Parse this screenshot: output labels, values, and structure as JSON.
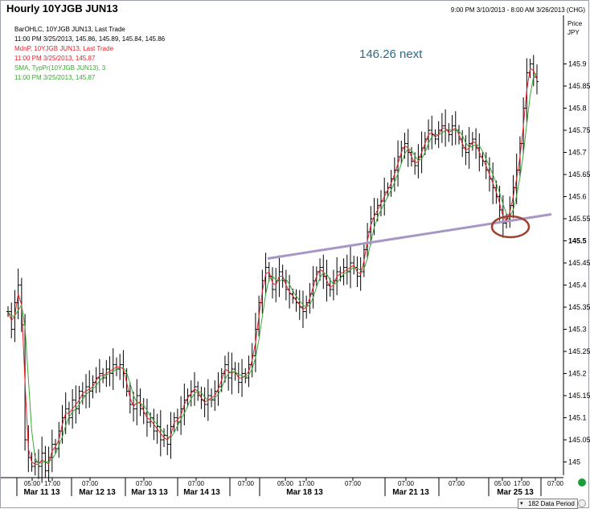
{
  "header": {
    "title": "Hourly 10YJGB JUN13",
    "date_range": "9:00 PM 3/10/2013 - 8:00 AM 3/26/2013 (CHG)"
  },
  "legend": {
    "line1": "BarOHLC, 10YJGB JUN13, Last Trade",
    "line2": "11:00 PM 3/25/2013, 145.86, 145.89, 145.84, 145.86",
    "line3": "MdnP, 10YJGB JUN13, Last Trade",
    "line4": "11:00 PM 3/25/2013, 145.87",
    "line5": "SMA, TypPr(10YJGB JUN13), 3",
    "line6": "11:00 PM 3/25/2013, 145.87"
  },
  "annotation": "146.26 next",
  "axis": {
    "unit_label": "Price",
    "currency": "JPY"
  },
  "status": {
    "period": "182 Data Period"
  },
  "colors": {
    "bars": "#000000",
    "median_line": "#e8202a",
    "sma_line": "#3aa832",
    "trendline": "#a797c5",
    "ellipse": "#a0402a",
    "annotation": "#2c6a86"
  },
  "chart_data": {
    "type": "ohlc",
    "title": "Hourly 10YJGB JUN13",
    "ylabel": "Price",
    "ylim": [
      144.97,
      146.01
    ],
    "yticks": [
      145,
      145.05,
      145.1,
      145.15,
      145.2,
      145.25,
      145.3,
      145.35,
      145.4,
      145.45,
      145.5,
      145.55,
      145.6,
      145.65,
      145.7,
      145.75,
      145.8,
      145.85,
      145.9
    ],
    "highlighted_tick": 145.5,
    "time_ticks": [
      "05:00",
      "17:00",
      "07:00",
      "07:00",
      "07:00",
      "07:00",
      "05:00",
      "17:00",
      "07:00",
      "07:00",
      "07:00",
      "05:00",
      "17:00",
      "07:00"
    ],
    "day_labels": [
      "Mar 11 13",
      "Mar 12 13",
      "Mar 13 13",
      "Mar 14 13",
      "Mar 18 13",
      "Mar 21 13",
      "Mar 25 13"
    ],
    "series": [
      {
        "name": "MdnP",
        "color": "#e8202a"
      },
      {
        "name": "SMA, TypPr, 3",
        "color": "#3aa832"
      }
    ],
    "closes": [
      145.34,
      145.3,
      145.36,
      145.4,
      145.31,
      145.05,
      145.01,
      144.99,
      145.0,
      144.99,
      145.02,
      144.98,
      145.01,
      145.04,
      145.03,
      145.07,
      145.1,
      145.12,
      145.1,
      145.14,
      145.12,
      145.16,
      145.15,
      145.17,
      145.16,
      145.18,
      145.19,
      145.2,
      145.19,
      145.21,
      145.2,
      145.22,
      145.21,
      145.22,
      145.2,
      145.16,
      145.13,
      145.12,
      145.15,
      145.12,
      145.11,
      145.09,
      145.1,
      145.07,
      145.08,
      145.05,
      145.06,
      145.04,
      145.08,
      145.1,
      145.09,
      145.12,
      145.14,
      145.15,
      145.16,
      145.17,
      145.15,
      145.14,
      145.13,
      145.15,
      145.14,
      145.16,
      145.17,
      145.2,
      145.22,
      145.19,
      145.21,
      145.2,
      145.18,
      145.2,
      145.19,
      145.22,
      145.24,
      145.3,
      145.36,
      145.41,
      145.44,
      145.42,
      145.39,
      145.41,
      145.43,
      145.41,
      145.39,
      145.38,
      145.37,
      145.36,
      145.35,
      145.34,
      145.36,
      145.38,
      145.41,
      145.43,
      145.44,
      145.42,
      145.4,
      145.39,
      145.41,
      145.43,
      145.42,
      145.44,
      145.43,
      145.45,
      145.44,
      145.42,
      145.43,
      145.48,
      145.52,
      145.55,
      145.56,
      145.58,
      145.59,
      145.61,
      145.62,
      145.64,
      145.66,
      145.69,
      145.71,
      145.72,
      145.7,
      145.68,
      145.67,
      145.69,
      145.71,
      145.73,
      145.75,
      145.74,
      145.73,
      145.75,
      145.76,
      145.75,
      145.74,
      145.76,
      145.75,
      145.73,
      145.71,
      145.7,
      145.72,
      145.73,
      145.71,
      145.69,
      145.68,
      145.66,
      145.64,
      145.62,
      145.6,
      145.57,
      145.54,
      145.55,
      145.58,
      145.62,
      145.66,
      145.72,
      145.8,
      145.88,
      145.9,
      145.87,
      145.86
    ],
    "trendline": [
      [
        145.46,
        145.56
      ]
    ],
    "annotation_text": "146.26 next"
  }
}
